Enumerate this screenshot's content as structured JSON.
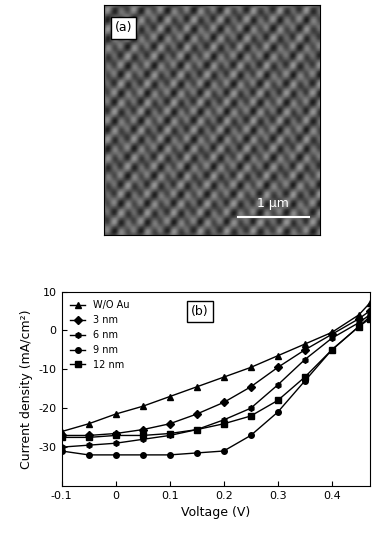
{
  "image_panel": {
    "label": "(a)",
    "scale_bar": "1 μm"
  },
  "chart_data": {
    "type": "line",
    "label": "(b)",
    "x_label": "Voltage (V)",
    "y_label": "Current density (mA/cm²)",
    "x": [
      -0.1,
      -0.05,
      0,
      0.05,
      0.1,
      0.15,
      0.2,
      0.25,
      0.3,
      0.35,
      0.4,
      0.45,
      0.47
    ],
    "series": [
      {
        "name": "W/O Au",
        "color": "#000000",
        "marker": "triangle",
        "values": [
          -26,
          -24,
          -21.5,
          -19.5,
          -17,
          -14.5,
          -12,
          -9.5,
          -6.5,
          -3.5,
          -0.5,
          4,
          7
        ]
      },
      {
        "name": "3 nm",
        "color": "#000000",
        "marker": "diamond",
        "values": [
          -27,
          -27,
          -26.5,
          -25.5,
          -24,
          -21.5,
          -18.5,
          -14.5,
          -9.5,
          -5,
          -1,
          3,
          5
        ]
      },
      {
        "name": "6 nm",
        "color": "#000000",
        "marker": "hexagon",
        "values": [
          -30,
          -29.5,
          -29,
          -28,
          -27,
          -25.5,
          -23,
          -20,
          -14,
          -7.5,
          -2,
          2,
          4
        ]
      },
      {
        "name": "9 nm",
        "color": "#000000",
        "marker": "circle",
        "values": [
          -31,
          -32,
          -32,
          -32,
          -32,
          -31.5,
          -31,
          -27,
          -21,
          -13,
          -5,
          1,
          3.5
        ]
      },
      {
        "name": "12 nm",
        "color": "#000000",
        "marker": "square",
        "values": [
          -27.5,
          -27.5,
          -27,
          -27,
          -26.5,
          -25.5,
          -24,
          -22,
          -18,
          -12,
          -5,
          1,
          3
        ]
      }
    ],
    "xlim": [
      -0.1,
      0.47
    ],
    "xticks": [
      -0.1,
      0,
      0.1,
      0.2,
      0.3,
      0.4
    ],
    "ylim": [
      -40,
      10
    ],
    "yticks": [
      -30,
      -20,
      -10,
      0,
      10
    ],
    "legend": "upper left",
    "grid": false
  }
}
